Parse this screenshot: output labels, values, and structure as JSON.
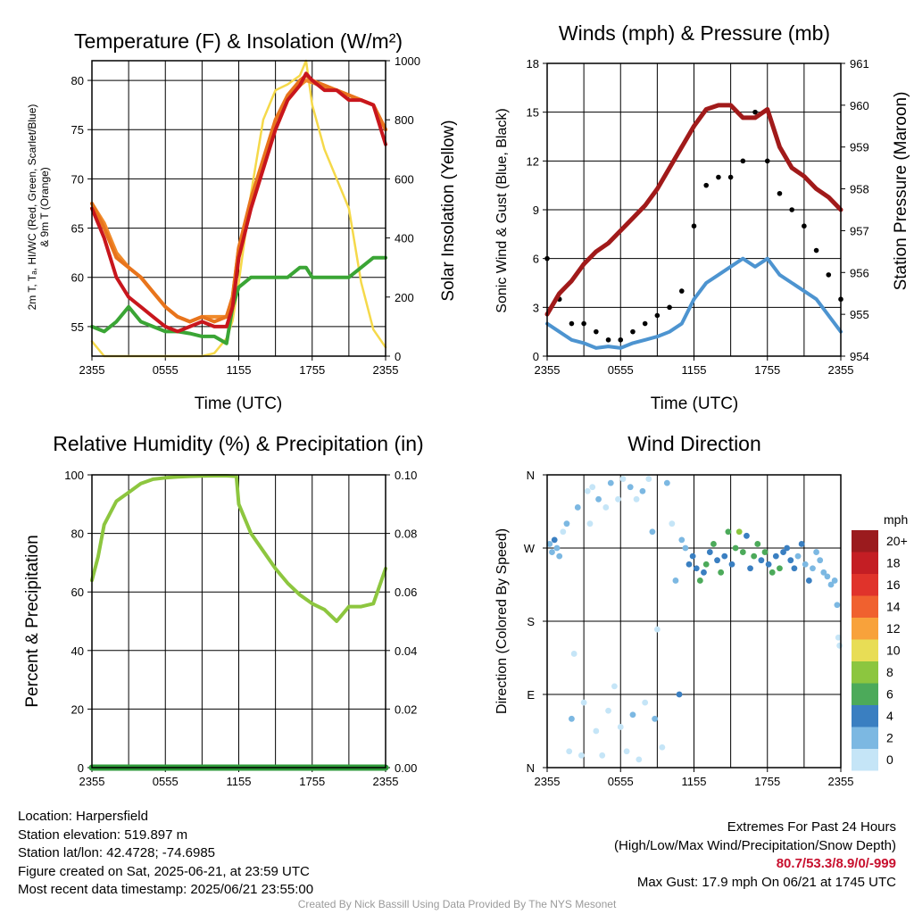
{
  "time_ticks": [
    "2355",
    "0555",
    "1155",
    "1755",
    "2355"
  ],
  "colors": {
    "temp": "#c8161d",
    "dewpoint": "#3aa535",
    "heat_index": "#e8741c",
    "nine_m": "#f08a2a",
    "solar": "#f5d94a",
    "wind": "#4d94d0",
    "gust": "#000000",
    "pressure": "#a11a1a",
    "rh": "#8dc63f",
    "precip": "#2e9a3a"
  },
  "colorbar": {
    "unit": "mph",
    "labels": [
      "20+",
      "18",
      "16",
      "14",
      "12",
      "10",
      "8",
      "6",
      "4",
      "2",
      "0"
    ],
    "colors": [
      "#9b1b1e",
      "#c41e24",
      "#e0332b",
      "#f0612f",
      "#f8a23b",
      "#e8dd55",
      "#8cc63f",
      "#4caa5a",
      "#3a7fc1",
      "#7cb8e2",
      "#c5e5f7"
    ]
  },
  "chart_data": [
    {
      "type": "line",
      "title": "Temperature (F) & Insolation (W/m2)",
      "xlabel": "Time (UTC)",
      "ylabel": "2m T, Td, HI/WC (Red, Green, Scarlet/Blue) & 9m T (Orange)",
      "ylabel_right": "Solar Insolation (Yellow)",
      "x_hours": [
        0,
        1,
        2,
        3,
        4,
        5,
        6,
        7,
        8,
        9,
        10,
        11,
        11.5,
        12,
        13,
        14,
        15,
        16,
        17,
        17.5,
        18,
        19,
        20,
        21,
        22,
        23,
        24
      ],
      "ylim": [
        52,
        82
      ],
      "ylim_right": [
        0,
        1000
      ],
      "yticks": [
        55,
        60,
        65,
        70,
        75,
        80
      ],
      "yticks_right": [
        0,
        200,
        400,
        600,
        800,
        1000
      ],
      "series": [
        {
          "name": "2m T",
          "axis": "left",
          "color": "temp",
          "values": [
            67,
            64,
            60,
            58,
            57,
            56,
            55,
            54.5,
            55,
            55.5,
            55,
            55,
            57,
            62,
            67,
            71,
            75,
            78,
            79.5,
            80.7,
            80,
            79,
            79,
            78,
            78,
            77.5,
            73.5
          ]
        },
        {
          "name": "Td",
          "axis": "left",
          "color": "dewpoint",
          "values": [
            55,
            54.5,
            55.5,
            57,
            55.5,
            55,
            54.5,
            54.5,
            54.3,
            54,
            54,
            53.3,
            57,
            59,
            60,
            60,
            60,
            60,
            61,
            61,
            60,
            60,
            60,
            60,
            61,
            62,
            62
          ]
        },
        {
          "name": "HI/WC",
          "axis": "left",
          "color": "heat_index",
          "values": [
            67.5,
            65,
            62,
            61,
            60,
            58.5,
            57,
            56,
            55.5,
            56,
            55.5,
            56,
            58,
            63,
            68,
            72,
            76,
            78.5,
            80,
            80.5,
            80,
            79.5,
            79,
            78.5,
            78,
            77.5,
            75
          ]
        },
        {
          "name": "9m T",
          "axis": "left",
          "color": "nine_m",
          "values": [
            67.5,
            65.5,
            62.5,
            61,
            60,
            58.5,
            57,
            56,
            55.5,
            56,
            56,
            56,
            58,
            63,
            67.5,
            71.5,
            75,
            78,
            79.5,
            80,
            79.8,
            79.3,
            79,
            78.5,
            78,
            77.5,
            75
          ]
        },
        {
          "name": "Solar",
          "axis": "right",
          "color": "solar",
          "values": [
            50,
            0,
            0,
            0,
            0,
            0,
            0,
            0,
            0,
            0,
            10,
            60,
            120,
            250,
            550,
            800,
            900,
            920,
            950,
            1000,
            850,
            700,
            600,
            500,
            250,
            90,
            30
          ]
        }
      ]
    },
    {
      "type": "line",
      "title": "Winds (mph) & Pressure (mb)",
      "xlabel": "Time (UTC)",
      "ylabel": "Sonic Wind & Gust (Blue, Black)",
      "ylabel_right": "Station Pressure (Maroon)",
      "x_hours": [
        0,
        1,
        2,
        3,
        4,
        5,
        6,
        7,
        8,
        9,
        10,
        11,
        12,
        13,
        14,
        15,
        16,
        17,
        18,
        19,
        20,
        21,
        22,
        23,
        24
      ],
      "ylim": [
        0,
        18
      ],
      "ylim_right": [
        954,
        961
      ],
      "yticks": [
        0,
        3,
        6,
        9,
        12,
        15,
        18
      ],
      "yticks_right": [
        954,
        955,
        956,
        957,
        958,
        959,
        960,
        961
      ],
      "series": [
        {
          "name": "Wind",
          "axis": "left",
          "color": "wind",
          "values": [
            2.0,
            1.5,
            1.0,
            0.8,
            0.5,
            0.6,
            0.5,
            0.8,
            1.0,
            1.2,
            1.5,
            2.0,
            3.5,
            4.5,
            5.0,
            5.5,
            6.0,
            5.5,
            6.0,
            5.0,
            4.5,
            4.0,
            3.5,
            2.5,
            1.5
          ]
        },
        {
          "name": "Gust",
          "axis": "left",
          "color": "gust",
          "values": [
            6.0,
            3.5,
            2.0,
            2.0,
            1.5,
            1.0,
            1.0,
            1.5,
            2.0,
            2.5,
            3.0,
            4.0,
            8.0,
            10.5,
            11.0,
            11.0,
            12.0,
            15.0,
            12.0,
            10.0,
            9.0,
            8.0,
            6.5,
            5.0,
            3.5
          ]
        },
        {
          "name": "Pressure",
          "axis": "right",
          "color": "pressure",
          "values": [
            955.0,
            955.5,
            955.8,
            956.2,
            956.5,
            956.7,
            957.0,
            957.3,
            957.6,
            958.0,
            958.5,
            959.0,
            959.5,
            959.9,
            960.0,
            960.0,
            959.7,
            959.7,
            959.9,
            959.0,
            958.5,
            958.3,
            958.0,
            957.8,
            957.5
          ]
        }
      ]
    },
    {
      "type": "line",
      "title": "Relative Humidity (%) & Precipitation (in)",
      "xlabel": "",
      "ylabel": "Percent & Precipitation",
      "x_hours": [
        0,
        0.5,
        1,
        2,
        3,
        4,
        5,
        6,
        7,
        8,
        9,
        10,
        11,
        11.8,
        12,
        13,
        14,
        15,
        16,
        17,
        18,
        19,
        20,
        21,
        22,
        23,
        24
      ],
      "ylim": [
        0,
        100
      ],
      "ylim_right": [
        0,
        0.1
      ],
      "yticks": [
        0,
        20,
        40,
        60,
        80,
        100
      ],
      "yticks_right": [
        0.0,
        0.02,
        0.04,
        0.06,
        0.08,
        0.1
      ],
      "series": [
        {
          "name": "RH",
          "axis": "left",
          "color": "rh",
          "values": [
            64,
            72,
            83,
            91,
            94,
            97,
            98.5,
            99,
            99.3,
            99.5,
            99.6,
            99.7,
            99.7,
            99.5,
            90,
            80,
            74,
            68,
            63,
            59,
            56,
            54,
            50,
            55,
            55,
            56,
            68
          ]
        },
        {
          "name": "Precip",
          "axis": "right",
          "color": "precip",
          "values": [
            0,
            0,
            0,
            0,
            0,
            0,
            0,
            0,
            0,
            0,
            0,
            0,
            0,
            0,
            0,
            0,
            0,
            0,
            0,
            0,
            0,
            0,
            0,
            0,
            0,
            0,
            0
          ]
        }
      ]
    },
    {
      "type": "scatter",
      "title": "Wind Direction",
      "ylabel": "Direction (Colored By Speed)",
      "yticks": [
        "N",
        "E",
        "S",
        "W",
        "N"
      ],
      "ylim_degrees": [
        0,
        360
      ],
      "points": [
        [
          0.2,
          275,
          2
        ],
        [
          0.4,
          265,
          2
        ],
        [
          0.6,
          280,
          4
        ],
        [
          0.8,
          270,
          2
        ],
        [
          1.0,
          260,
          2
        ],
        [
          1.3,
          290,
          0
        ],
        [
          1.6,
          300,
          2
        ],
        [
          1.8,
          20,
          0
        ],
        [
          2.0,
          60,
          2
        ],
        [
          2.2,
          140,
          0
        ],
        [
          2.5,
          320,
          2
        ],
        [
          2.8,
          15,
          0
        ],
        [
          3.0,
          80,
          0
        ],
        [
          3.3,
          340,
          0
        ],
        [
          3.5,
          300,
          0
        ],
        [
          3.7,
          345,
          0
        ],
        [
          4.0,
          45,
          0
        ],
        [
          4.2,
          330,
          2
        ],
        [
          4.5,
          15,
          0
        ],
        [
          4.8,
          320,
          0
        ],
        [
          5.0,
          70,
          0
        ],
        [
          5.2,
          350,
          2
        ],
        [
          5.5,
          100,
          0
        ],
        [
          5.8,
          330,
          0
        ],
        [
          6.0,
          50,
          0
        ],
        [
          6.2,
          355,
          0
        ],
        [
          6.5,
          20,
          0
        ],
        [
          6.8,
          345,
          2
        ],
        [
          7.0,
          65,
          2
        ],
        [
          7.3,
          330,
          0
        ],
        [
          7.5,
          10,
          0
        ],
        [
          7.8,
          340,
          2
        ],
        [
          8.0,
          80,
          0
        ],
        [
          8.3,
          355,
          0
        ],
        [
          8.6,
          290,
          2
        ],
        [
          8.8,
          60,
          2
        ],
        [
          9.0,
          170,
          0
        ],
        [
          9.4,
          25,
          0
        ],
        [
          9.8,
          350,
          2
        ],
        [
          10.2,
          300,
          0
        ],
        [
          10.5,
          230,
          2
        ],
        [
          10.8,
          90,
          4
        ],
        [
          11.0,
          280,
          2
        ],
        [
          11.3,
          270,
          2
        ],
        [
          11.6,
          250,
          4
        ],
        [
          11.9,
          260,
          4
        ],
        [
          12.2,
          245,
          4
        ],
        [
          12.5,
          230,
          6
        ],
        [
          12.8,
          240,
          4
        ],
        [
          13.0,
          250,
          6
        ],
        [
          13.3,
          265,
          4
        ],
        [
          13.6,
          275,
          6
        ],
        [
          13.9,
          255,
          4
        ],
        [
          14.2,
          240,
          6
        ],
        [
          14.5,
          260,
          4
        ],
        [
          14.8,
          290,
          6
        ],
        [
          15.1,
          250,
          4
        ],
        [
          15.4,
          270,
          6
        ],
        [
          15.7,
          290,
          8
        ],
        [
          16.0,
          265,
          6
        ],
        [
          16.3,
          285,
          4
        ],
        [
          16.6,
          245,
          4
        ],
        [
          16.9,
          260,
          6
        ],
        [
          17.2,
          275,
          6
        ],
        [
          17.5,
          255,
          4
        ],
        [
          17.8,
          265,
          6
        ],
        [
          18.1,
          250,
          4
        ],
        [
          18.4,
          240,
          6
        ],
        [
          18.7,
          260,
          4
        ],
        [
          19.0,
          245,
          6
        ],
        [
          19.3,
          265,
          4
        ],
        [
          19.6,
          270,
          4
        ],
        [
          19.9,
          255,
          4
        ],
        [
          20.2,
          245,
          4
        ],
        [
          20.5,
          260,
          2
        ],
        [
          20.8,
          275,
          4
        ],
        [
          21.1,
          250,
          2
        ],
        [
          21.4,
          230,
          4
        ],
        [
          21.7,
          245,
          2
        ],
        [
          22.0,
          265,
          2
        ],
        [
          22.3,
          255,
          2
        ],
        [
          22.6,
          240,
          2
        ],
        [
          22.9,
          235,
          2
        ],
        [
          23.2,
          225,
          2
        ],
        [
          23.5,
          230,
          2
        ],
        [
          23.7,
          200,
          2
        ],
        [
          23.8,
          160,
          0
        ],
        [
          23.9,
          150,
          0
        ]
      ]
    }
  ],
  "charts": [
    {
      "title": "Temperature (F) & Insolation (W/m²)",
      "xlabel": "Time (UTC)",
      "ylabel_line1": "2m T, Tₐ, HI/WC (Red, Green, Scarlet/Blue)",
      "ylabel_line2": "& 9m T (Orange)",
      "ylabel_right": "Solar Insolation (Yellow)"
    },
    {
      "title": "Winds (mph) & Pressure (mb)",
      "xlabel": "Time (UTC)",
      "ylabel": "Sonic Wind & Gust (Blue, Black)",
      "ylabel_right": "Station Pressure (Maroon)"
    },
    {
      "title": "Relative Humidity (%) & Precipitation (in)",
      "ylabel": "Percent & Precipitation"
    },
    {
      "title": "Wind Direction",
      "ylabel": "Direction (Colored By Speed)"
    }
  ],
  "info": {
    "location": "Location: Harpersfield",
    "elevation": "Station elevation: 519.897 m",
    "latlon": "Station lat/lon: 42.4728; -74.6985",
    "created": "Figure created on Sat, 2025-06-21, at 23:59 UTC",
    "recent": "Most recent data timestamp: 2025/06/21 23:55:00"
  },
  "extremes": {
    "title": "Extremes For Past 24 Hours",
    "subtitle": "(High/Low/Max Wind/Precipitation/Snow Depth)",
    "values": "80.7/53.3/8.9/0/-999",
    "max_gust": "Max Gust: 17.9 mph On 06/21 at 1745 UTC"
  },
  "credit": "Created By Nick Bassill Using Data Provided By The NYS Mesonet"
}
